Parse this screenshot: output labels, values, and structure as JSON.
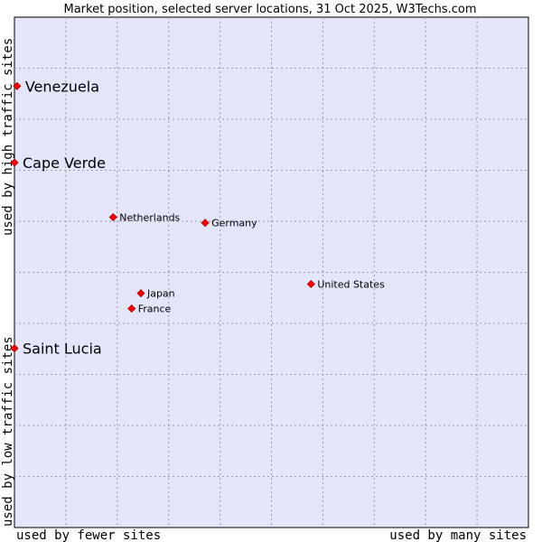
{
  "chart_data": {
    "type": "scatter",
    "title": "Market position, selected server locations, 31 Oct 2025, W3Techs.com",
    "xlabel_left": "used by fewer sites",
    "xlabel_right": "used by many sites",
    "ylabel_bottom": "used by low traffic sites",
    "ylabel_top": "used by high traffic sites",
    "xlim": [
      0,
      100
    ],
    "ylim": [
      0,
      100
    ],
    "grid": true,
    "colors": {
      "plot_bg": "#e3e5f8",
      "point": "#ff0000",
      "grid": "#9a9ab0"
    },
    "points": [
      {
        "name": "Venezuela",
        "x": 0.5,
        "y": 86.5,
        "size": "large"
      },
      {
        "name": "Cape Verde",
        "x": 0.0,
        "y": 71.5,
        "size": "large"
      },
      {
        "name": "Netherlands",
        "x": 19.2,
        "y": 60.8,
        "size": "small"
      },
      {
        "name": "Germany",
        "x": 37.1,
        "y": 59.7,
        "size": "small"
      },
      {
        "name": "United States",
        "x": 57.7,
        "y": 47.7,
        "size": "small"
      },
      {
        "name": "Japan",
        "x": 24.6,
        "y": 45.9,
        "size": "small"
      },
      {
        "name": "France",
        "x": 22.8,
        "y": 42.9,
        "size": "small"
      },
      {
        "name": "Saint Lucia",
        "x": 0.0,
        "y": 35.1,
        "size": "large"
      }
    ]
  }
}
